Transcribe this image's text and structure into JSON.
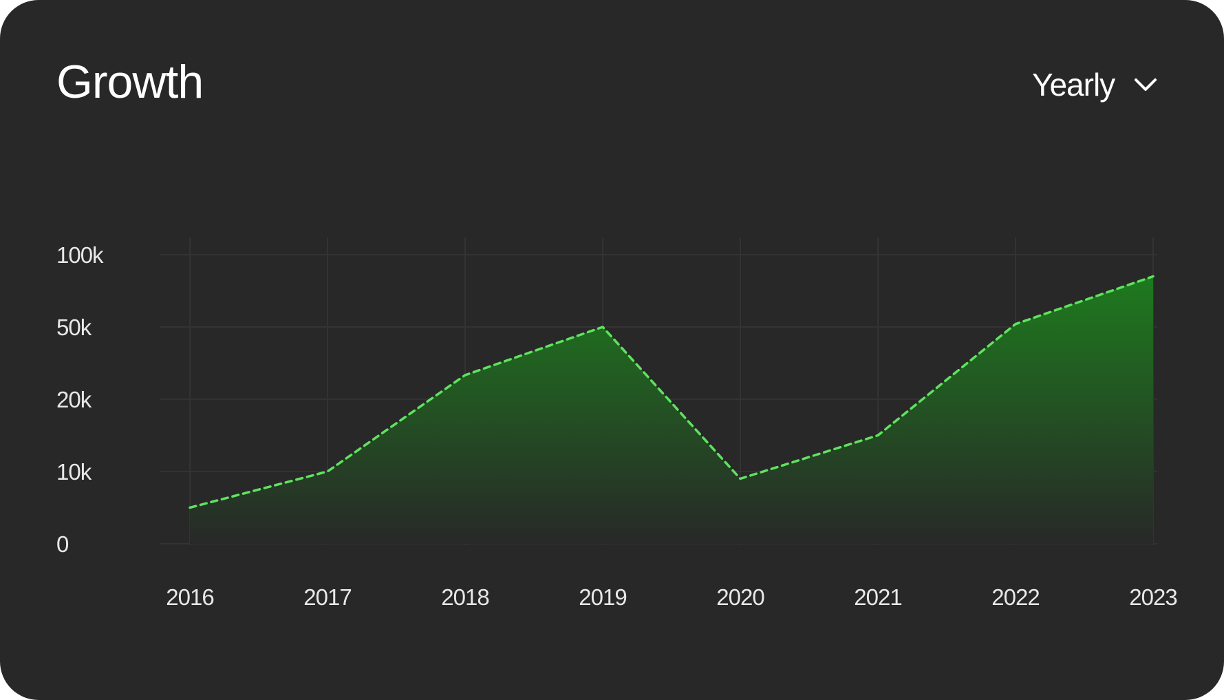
{
  "header": {
    "title": "Growth",
    "period": "Yearly",
    "chevron_icon": "chevron-down-icon"
  },
  "colors": {
    "background": "#282828",
    "grid": "#333333",
    "line": "#5ee35e",
    "fill_top": "#1e7a1e",
    "text": "#ffffff"
  },
  "chart_data": {
    "type": "area",
    "title": "Growth",
    "xlabel": "",
    "ylabel": "",
    "x": [
      "2016",
      "2017",
      "2018",
      "2019",
      "2020",
      "2021",
      "2022",
      "2023"
    ],
    "y_ticks": [
      "0",
      "10k",
      "20k",
      "50k",
      "100k"
    ],
    "y_tick_values": [
      0,
      10000,
      20000,
      50000,
      100000
    ],
    "y_scale": "categorical-spaced (equal spacing between 0, 10k, 20k, 50k, 100k)",
    "series": [
      {
        "values": [
          5000,
          10000,
          30000,
          50000,
          9000,
          15000,
          52000,
          85000
        ]
      }
    ],
    "ylim": [
      0,
      100000
    ],
    "line_style": "dashed",
    "fill": "gradient",
    "grid": true,
    "legend": "none"
  }
}
